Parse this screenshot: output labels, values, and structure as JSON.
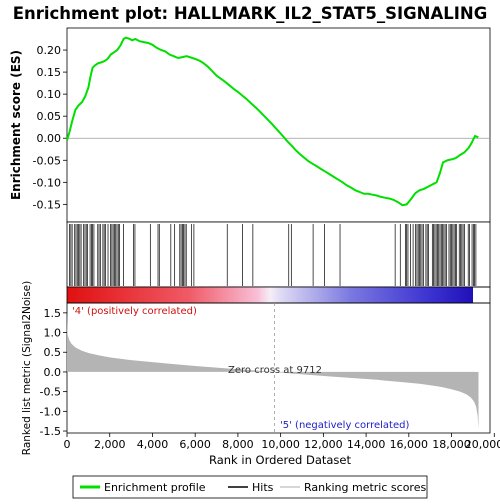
{
  "title": "Enrichment plot: HALLMARK_IL2_STAT5_SIGNALING",
  "colors": {
    "enrichment_line": "#00e000",
    "hits": "#000000",
    "ranking_fill": "#b4b4b4",
    "positive_label": "#d01010",
    "negative_label": "#2020c8",
    "zero_line": "#9a9a9a"
  },
  "legend": [
    {
      "label": "Enrichment profile",
      "icon": "green-line"
    },
    {
      "label": "Hits",
      "icon": "black-line"
    },
    {
      "label": "Ranking metric scores",
      "icon": "gray-line"
    }
  ],
  "chart_data": [
    {
      "type": "line",
      "name": "enrichment-profile",
      "ylabel": "Enrichment score (ES)",
      "ylim": [
        -0.19,
        0.25
      ],
      "yticks": [
        -0.15,
        -0.1,
        -0.05,
        0.0,
        0.05,
        0.1,
        0.15,
        0.2
      ],
      "ytick_labels": [
        "-0.15",
        "-0.10",
        "-0.05",
        "0.00",
        "0.05",
        "0.10",
        "0.15",
        "0.20"
      ],
      "xlim": [
        0,
        19800
      ],
      "series": [
        {
          "x": [
            0,
            120,
            250,
            400,
            550,
            700,
            850,
            1000,
            1100,
            1200,
            1300,
            1450,
            1600,
            1750,
            1900,
            2050,
            2200,
            2350,
            2500,
            2650,
            2750,
            2900,
            3050,
            3200,
            3400,
            3600,
            3800,
            4000,
            4200,
            4400,
            4600,
            4800,
            5000,
            5200,
            5400,
            5600,
            5800,
            6000,
            6200,
            6400,
            6600,
            6800,
            7000,
            7200,
            7400,
            7600,
            7800,
            8000,
            8200,
            8400,
            8600,
            8800,
            9000,
            9200,
            9400,
            9600,
            9712,
            9900,
            10100,
            10300,
            10500,
            10700,
            10900,
            11100,
            11300,
            11500,
            11700,
            11900,
            12100,
            12300,
            12500,
            12700,
            12900,
            13100,
            13300,
            13500,
            13700,
            13900,
            14100,
            14300,
            14500,
            14700,
            14900,
            15100,
            15300,
            15500,
            15700,
            15900,
            16100,
            16300,
            16500,
            16700,
            16900,
            17100,
            17300,
            17450,
            17600,
            17800,
            18000,
            18200,
            18400,
            18600,
            18800,
            18950,
            19100,
            19250
          ],
          "y": [
            -0.005,
            0.015,
            0.04,
            0.065,
            0.075,
            0.082,
            0.095,
            0.115,
            0.14,
            0.16,
            0.165,
            0.17,
            0.172,
            0.175,
            0.18,
            0.19,
            0.195,
            0.2,
            0.21,
            0.225,
            0.228,
            0.226,
            0.222,
            0.225,
            0.22,
            0.218,
            0.216,
            0.212,
            0.205,
            0.2,
            0.197,
            0.19,
            0.186,
            0.182,
            0.184,
            0.186,
            0.183,
            0.18,
            0.176,
            0.17,
            0.162,
            0.152,
            0.142,
            0.135,
            0.128,
            0.12,
            0.112,
            0.105,
            0.097,
            0.089,
            0.08,
            0.071,
            0.062,
            0.052,
            0.042,
            0.032,
            0.026,
            0.016,
            0.005,
            -0.006,
            -0.016,
            -0.027,
            -0.036,
            -0.044,
            -0.052,
            -0.058,
            -0.064,
            -0.07,
            -0.076,
            -0.082,
            -0.088,
            -0.094,
            -0.1,
            -0.107,
            -0.112,
            -0.118,
            -0.122,
            -0.126,
            -0.126,
            -0.128,
            -0.13,
            -0.133,
            -0.135,
            -0.137,
            -0.14,
            -0.145,
            -0.152,
            -0.15,
            -0.138,
            -0.125,
            -0.118,
            -0.115,
            -0.11,
            -0.105,
            -0.1,
            -0.08,
            -0.055,
            -0.05,
            -0.048,
            -0.045,
            -0.038,
            -0.032,
            -0.022,
            -0.01,
            0.005,
            0.002
          ]
        }
      ]
    },
    {
      "type": "line",
      "name": "ranked-list-metric",
      "xlabel": "Rank in Ordered Dataset",
      "ylabel": "Ranked list metric (Signal2Noise)",
      "xlim": [
        0,
        19800
      ],
      "ylim": [
        -1.55,
        1.75
      ],
      "xticks": [
        0,
        2000,
        4000,
        6000,
        8000,
        10000,
        12000,
        14000,
        16000,
        18000,
        20000
      ],
      "xtick_labels": [
        "0",
        "2,000",
        "4,000",
        "6,000",
        "8,000",
        "10,000",
        "12,000",
        "14,000",
        "16,000",
        "18,000",
        "20,000"
      ],
      "yticks": [
        -1.5,
        -1.0,
        -0.5,
        0.0,
        0.5,
        1.0,
        1.5
      ],
      "ytick_labels": [
        "-1.5",
        "-1.0",
        "-0.5",
        "0.0",
        "0.5",
        "1.0",
        "1.5"
      ],
      "zero_cross_rank": 9712,
      "series": [
        {
          "x": [
            0,
            30,
            100,
            200,
            400,
            700,
            1000,
            1500,
            2000,
            3000,
            4000,
            5000,
            6000,
            7000,
            8000,
            9000,
            9712,
            10500,
            11500,
            12500,
            13500,
            14500,
            15500,
            16500,
            17000,
            17500,
            18000,
            18400,
            18700,
            18900,
            19050,
            19150,
            19220,
            19260
          ],
          "y": [
            1.5,
            0.95,
            0.82,
            0.72,
            0.62,
            0.54,
            0.48,
            0.42,
            0.37,
            0.3,
            0.25,
            0.2,
            0.15,
            0.11,
            0.07,
            0.03,
            0.0,
            -0.04,
            -0.08,
            -0.12,
            -0.16,
            -0.2,
            -0.25,
            -0.3,
            -0.34,
            -0.38,
            -0.44,
            -0.5,
            -0.57,
            -0.65,
            -0.75,
            -0.88,
            -1.1,
            -1.45
          ]
        }
      ]
    }
  ],
  "annotations": {
    "positive": "'4' (positively correlated)",
    "negative": "'5' (negatively correlated)",
    "zero_cross": "Zero cross at 9712"
  }
}
